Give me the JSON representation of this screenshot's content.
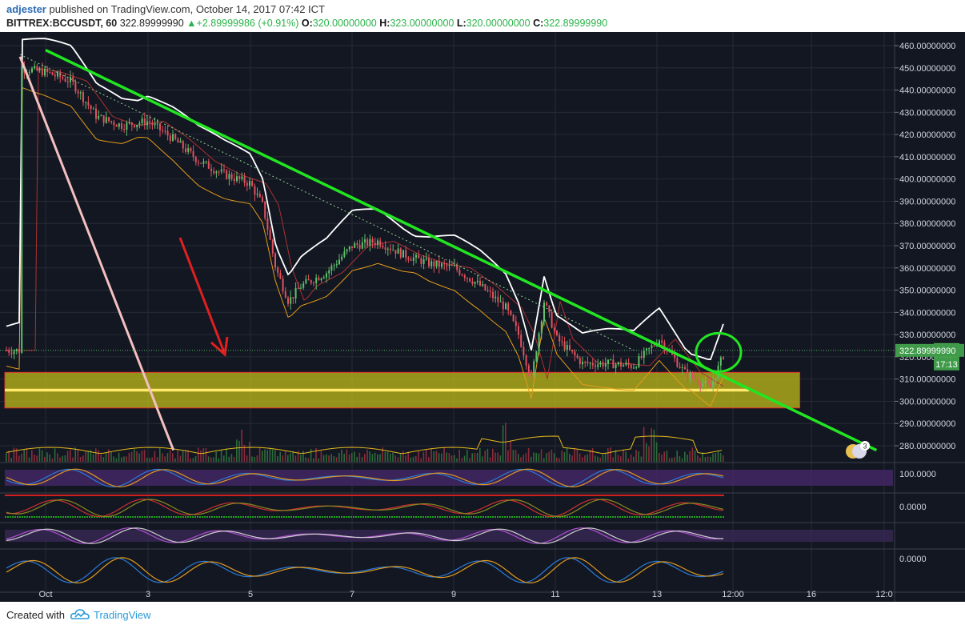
{
  "header": {
    "author": "adjester",
    "published_text": "published on TradingView.com, October 14, 2017 07:42 ICT",
    "symbol": "BITTREX:BCCUSDT, 60",
    "last_price": "322.89999990",
    "change": "+2.89999986 (+0.91%)",
    "ohlc": [
      {
        "label": "O:",
        "value": "320.00000000"
      },
      {
        "label": "H:",
        "value": "323.00000000"
      },
      {
        "label": "L:",
        "value": "320.00000000"
      },
      {
        "label": "C:",
        "value": "322.89999990"
      }
    ]
  },
  "footer": {
    "created_with": "Created with",
    "brand": "TradingView"
  },
  "chart_data": {
    "type": "line",
    "instrument": "BITTREX:BCCUSDT",
    "interval": "60",
    "ylim": [
      275,
      462
    ],
    "y_ticks": [
      "460.00000000",
      "450.00000000",
      "440.00000000",
      "430.00000000",
      "420.00000000",
      "410.00000000",
      "400.00000000",
      "390.00000000",
      "380.00000000",
      "370.00000000",
      "360.00000000",
      "350.00000000",
      "340.00000000",
      "330.00000000",
      "320.00000000",
      "310.00000000",
      "300.00000000",
      "290.00000000",
      "280.00000000"
    ],
    "x_ticks": [
      "Oct",
      "3",
      "5",
      "7",
      "9",
      "11",
      "13",
      "12:00",
      "16",
      "12:0"
    ],
    "current_price_label": "322.89999990",
    "countdown_label": "17:13",
    "price_series": {
      "name": "",
      "x": [
        "Sep 30 12:00",
        "Oct 1 00:00",
        "Oct 1 12:00",
        "Oct 2 00:00",
        "Oct 2 12:00",
        "Oct 3 00:00",
        "Oct 3 12:00",
        "Oct 4 00:00",
        "Oct 4 12:00",
        "Oct 5 00:00",
        "Oct 5 06:00",
        "Oct 5 12:00",
        "Oct 5 18:00",
        "Oct 6 00:00",
        "Oct 6 12:00",
        "Oct 7 00:00",
        "Oct 7 12:00",
        "Oct 8 00:00",
        "Oct 8 12:00",
        "Oct 9 00:00",
        "Oct 9 12:00",
        "Oct 10 00:00",
        "Oct 10 06:00",
        "Oct 10 12:00",
        "Oct 10 18:00",
        "Oct 11 00:00",
        "Oct 11 12:00",
        "Oct 12 00:00",
        "Oct 12 12:00",
        "Oct 13 00:00",
        "Oct 13 12:00",
        "Oct 14 00:00",
        "Oct 14 07:00"
      ],
      "values": [
        450,
        448,
        444,
        428,
        424,
        426,
        418,
        408,
        402,
        398,
        388,
        360,
        345,
        352,
        358,
        370,
        372,
        366,
        362,
        360,
        352,
        342,
        330,
        310,
        345,
        328,
        317,
        317,
        316,
        328,
        313,
        306,
        322.9
      ]
    },
    "annotations": [
      {
        "type": "trendline",
        "color": "#22e522",
        "description": "descending resistance",
        "from": [
          "Oct 1 00:00",
          458
        ],
        "to": [
          "Oct 17 06:00",
          278
        ]
      },
      {
        "type": "trendline",
        "color": "#f4c0c0",
        "description": "steep decline",
        "from": [
          "Sep 30 12:00",
          455
        ],
        "to": [
          "Oct 3 12:00",
          278
        ]
      },
      {
        "type": "trendline",
        "color": "#8fd18f",
        "description": "dotted channel",
        "from": [
          "Sep 30 12:00",
          456
        ],
        "to": [
          "Oct 12 12:00",
          323
        ]
      },
      {
        "type": "support_zone",
        "color": "#d4c81a",
        "from": [
          "Sep 30 12:00",
          313
        ],
        "to": [
          "Oct 15 18:00",
          297
        ]
      },
      {
        "type": "horizontal_line",
        "color": "#ffe86a",
        "value": 305
      },
      {
        "type": "arrow",
        "color": "#e02020",
        "direction": "down"
      },
      {
        "type": "circle",
        "color": "#22e522",
        "x": "Oct 14 06:00",
        "y": 322
      }
    ],
    "indicator_levels": [
      "100.0000",
      "0.0000",
      "0.0000"
    ],
    "watermark_badge": "3"
  },
  "colors": {
    "background": "#131722",
    "grid": "#262b36",
    "candle_up": "#5ec26a",
    "candle_down": "#e0525e",
    "bollinger": "#ffffff",
    "keltner": "#e39c1a"
  }
}
